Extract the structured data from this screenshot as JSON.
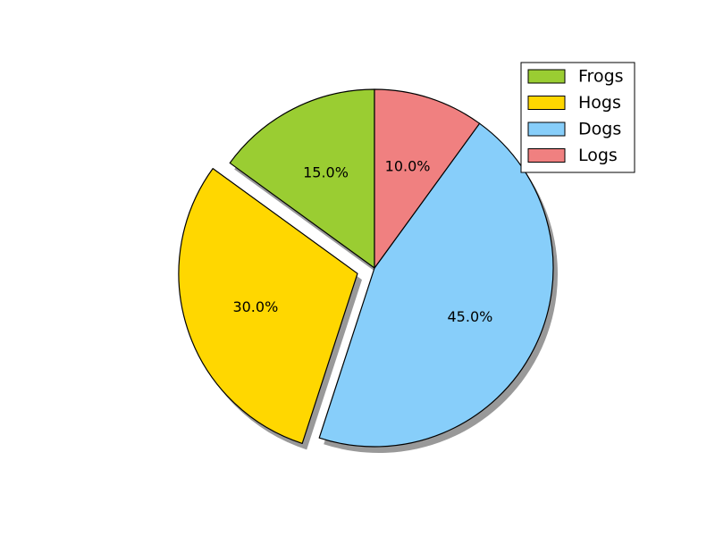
{
  "chart_data": {
    "type": "pie",
    "title": "",
    "labels": [
      "Frogs",
      "Hogs",
      "Dogs",
      "Logs"
    ],
    "values": [
      15,
      30,
      45,
      10
    ],
    "percent_labels": [
      "15.0%",
      "30.0%",
      "45.0%",
      "10.0%"
    ],
    "colors": [
      "#9acd32",
      "#ffd700",
      "#87cefa",
      "#f08080"
    ],
    "exploded": [
      false,
      true,
      false,
      false
    ],
    "start_angle_deg": 90,
    "direction": "counterclockwise",
    "shadow": true,
    "legend_position": "top-right"
  }
}
